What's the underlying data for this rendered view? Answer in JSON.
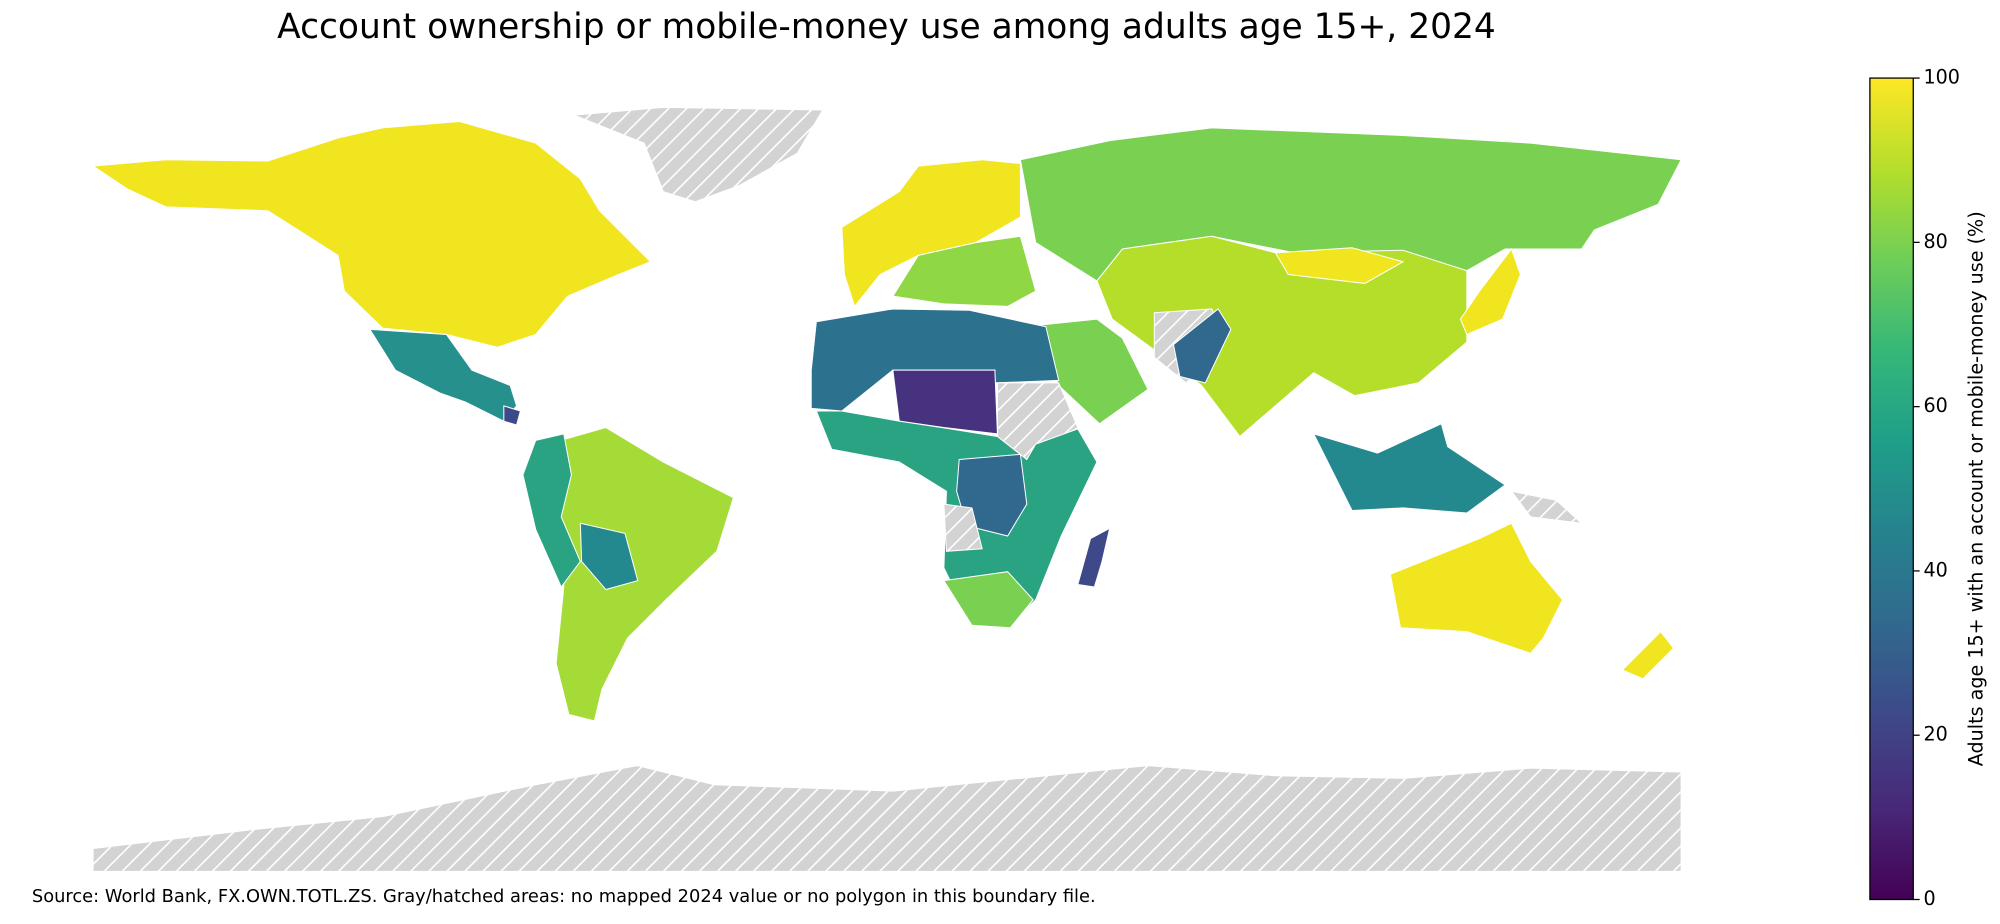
{
  "chart_data": {
    "type": "choropleth",
    "title": "Account ownership or mobile-money use among adults age 15+, 2024",
    "colorbar_label": "Adults age 15+ with an account or mobile-money use (%)",
    "vlim": [
      0,
      100
    ],
    "ticks": [
      0,
      20,
      40,
      60,
      80,
      100
    ],
    "colorscale": [
      "#440154",
      "#482878",
      "#3e4989",
      "#31688e",
      "#26828e",
      "#1f9e89",
      "#35b779",
      "#6ece58",
      "#b5de2b",
      "#fde725"
    ],
    "source": "Source: World Bank, FX.OWN.TOTL.ZS. Gray/hatched areas: no mapped 2024 value or no polygon in this boundary file."
  }
}
